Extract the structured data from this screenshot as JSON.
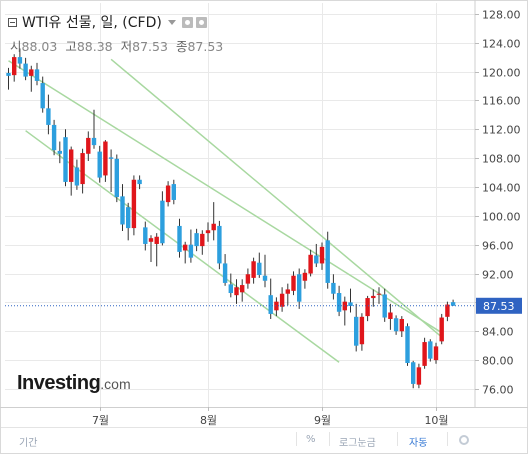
{
  "header": {
    "title": "WTI유 선물, 일, (CFD)",
    "icon_collapse": "collapse-icon",
    "icon_settings": "gear-icon",
    "icon_close": "close-icon",
    "ohlc": [
      {
        "label": "시",
        "value": "88.03"
      },
      {
        "label": "고",
        "value": "88.38"
      },
      {
        "label": "저",
        "value": "87.53"
      },
      {
        "label": "종",
        "value": "87.53"
      }
    ]
  },
  "logo": {
    "brand": "Investing",
    "tld": ".com"
  },
  "footer": {
    "period": "기간",
    "percent": "%",
    "log": "로그눈금",
    "auto": "자동",
    "settings_icon": "gear-icon"
  },
  "colors": {
    "up": "#e0161b",
    "down": "#2d9fde",
    "channel": "#a8d8a0",
    "last_price_tag": "#2f63c2",
    "grid": "#e9e9e9"
  },
  "chart_data": {
    "type": "candlestick",
    "title": "WTI유 선물, 일, (CFD)",
    "y_ticks": [
      "76.00",
      "80.00",
      "84.00",
      "88.00",
      "92.00",
      "96.00",
      "100.00",
      "104.00",
      "108.00",
      "112.00",
      "116.00",
      "120.00",
      "124.00",
      "128.00"
    ],
    "x_ticks": [
      "7월",
      "8월",
      "9월",
      "10월"
    ],
    "ylim": [
      73.5,
      129.5
    ],
    "last_price": "87.53",
    "candles": [
      [
        0,
        119.8,
        120.5,
        117.5,
        119.4
      ],
      [
        1,
        119.5,
        122.4,
        118.6,
        122.0
      ],
      [
        2,
        122.0,
        123.2,
        120.4,
        121.1
      ],
      [
        3,
        121.1,
        121.9,
        118.8,
        119.3
      ],
      [
        4,
        119.4,
        120.8,
        117.2,
        120.3
      ],
      [
        5,
        120.3,
        121.2,
        118.1,
        118.7
      ],
      [
        6,
        118.4,
        119.3,
        114.3,
        114.9
      ],
      [
        7,
        114.9,
        116.8,
        111.3,
        112.6
      ],
      [
        8,
        112.6,
        113.3,
        108.4,
        109.1
      ],
      [
        9,
        109.0,
        110.3,
        107.3,
        108.6
      ],
      [
        10,
        110.9,
        112.0,
        104.1,
        104.7
      ],
      [
        11,
        104.7,
        109.6,
        102.8,
        109.2
      ],
      [
        12,
        106.7,
        107.8,
        103.6,
        104.2
      ],
      [
        13,
        104.4,
        109.3,
        103.1,
        108.7
      ],
      [
        14,
        108.6,
        111.7,
        107.6,
        110.8
      ],
      [
        15,
        110.8,
        114.7,
        109.3,
        109.8
      ],
      [
        16,
        108.9,
        109.7,
        104.6,
        105.3
      ],
      [
        17,
        105.6,
        110.5,
        104.7,
        110.3
      ],
      [
        18,
        108.1,
        109.2,
        103.3,
        107.9
      ],
      [
        19,
        107.9,
        108.5,
        101.9,
        102.6
      ],
      [
        20,
        102.7,
        104.4,
        97.9,
        98.8
      ],
      [
        21,
        101.2,
        101.8,
        96.6,
        98.3
      ],
      [
        22,
        98.3,
        105.6,
        97.3,
        105.0
      ],
      [
        23,
        105.0,
        105.6,
        103.7,
        104.4
      ],
      [
        24,
        98.4,
        99.2,
        95.2,
        96.1
      ],
      [
        25,
        96.4,
        97.3,
        93.6,
        96.9
      ],
      [
        26,
        96.1,
        97.6,
        93.0,
        97.1
      ],
      [
        27,
        102.1,
        103.4,
        95.9,
        96.2
      ],
      [
        28,
        101.9,
        104.8,
        101.3,
        104.2
      ],
      [
        29,
        104.4,
        105.0,
        101.6,
        102.2
      ],
      [
        30,
        98.6,
        99.6,
        94.2,
        95.0
      ],
      [
        31,
        95.2,
        96.4,
        93.4,
        96.0
      ],
      [
        32,
        96.0,
        98.1,
        93.5,
        94.2
      ],
      [
        33,
        97.6,
        98.2,
        95.1,
        95.8
      ],
      [
        34,
        95.8,
        98.0,
        94.6,
        97.5
      ],
      [
        35,
        97.6,
        99.1,
        96.4,
        98.0
      ],
      [
        36,
        98.0,
        101.9,
        96.6,
        98.9
      ],
      [
        37,
        98.6,
        99.3,
        92.6,
        93.4
      ],
      [
        38,
        93.4,
        94.7,
        90.3,
        90.7
      ],
      [
        39,
        90.5,
        92.0,
        88.7,
        89.3
      ],
      [
        40,
        89.0,
        91.2,
        87.8,
        90.1
      ],
      [
        41,
        89.4,
        91.2,
        88.1,
        90.4
      ],
      [
        42,
        90.6,
        92.7,
        89.9,
        91.9
      ],
      [
        43,
        91.4,
        94.2,
        90.6,
        93.7
      ],
      [
        44,
        93.5,
        94.9,
        91.4,
        91.8
      ],
      [
        45,
        91.7,
        94.6,
        90.1,
        91.0
      ],
      [
        46,
        89.0,
        91.3,
        85.7,
        86.4
      ],
      [
        47,
        86.9,
        88.7,
        86.1,
        88.1
      ],
      [
        48,
        87.4,
        90.1,
        86.7,
        89.2
      ],
      [
        49,
        89.2,
        90.6,
        87.6,
        89.8
      ],
      [
        50,
        89.6,
        92.3,
        89.0,
        91.7
      ],
      [
        51,
        91.9,
        92.7,
        87.1,
        88.1
      ],
      [
        52,
        91.0,
        92.6,
        89.9,
        92.1
      ],
      [
        53,
        92.0,
        95.3,
        91.6,
        94.6
      ],
      [
        54,
        94.5,
        96.1,
        92.9,
        93.4
      ],
      [
        55,
        93.4,
        96.3,
        92.5,
        95.7
      ],
      [
        56,
        96.6,
        97.8,
        89.9,
        90.7
      ],
      [
        57,
        90.7,
        91.9,
        88.4,
        89.2
      ],
      [
        58,
        89.3,
        90.3,
        86.1,
        86.7
      ],
      [
        59,
        86.9,
        88.8,
        84.8,
        88.1
      ],
      [
        60,
        88.0,
        89.9,
        86.6,
        87.5
      ],
      [
        61,
        86.0,
        87.8,
        81.2,
        82.0
      ],
      [
        62,
        82.2,
        86.5,
        81.3,
        86.0
      ],
      [
        63,
        86.1,
        88.9,
        85.4,
        88.6
      ],
      [
        64,
        88.6,
        89.8,
        87.4,
        88.9
      ],
      [
        65,
        89.1,
        90.1,
        87.8,
        89.2
      ],
      [
        66,
        89.1,
        89.9,
        85.3,
        85.9
      ],
      [
        67,
        85.7,
        87.8,
        84.2,
        86.6
      ],
      [
        68,
        85.8,
        86.2,
        83.5,
        84.0
      ],
      [
        69,
        84.0,
        86.1,
        83.2,
        85.7
      ],
      [
        70,
        84.7,
        85.1,
        79.2,
        79.6
      ],
      [
        71,
        79.7,
        79.9,
        76.1,
        76.7
      ],
      [
        72,
        76.6,
        79.5,
        76.1,
        79.0
      ],
      [
        73,
        79.2,
        83.1,
        78.8,
        82.5
      ],
      [
        74,
        82.6,
        82.9,
        79.8,
        80.2
      ],
      [
        75,
        80.0,
        82.4,
        79.5,
        81.9
      ],
      [
        76,
        82.6,
        86.4,
        82.2,
        85.9
      ],
      [
        77,
        86.0,
        88.1,
        85.4,
        87.7
      ],
      [
        78,
        88.03,
        88.38,
        87.53,
        87.53
      ]
    ],
    "channel_lines": [
      {
        "from": [
          0,
          121.5
        ],
        "to": [
          76,
          83.8
        ]
      },
      {
        "from": [
          18,
          121.7
        ],
        "to": [
          76,
          83.2
        ]
      },
      {
        "from": [
          3,
          111.8
        ],
        "to": [
          58,
          79.7
        ]
      }
    ],
    "grid": true
  }
}
